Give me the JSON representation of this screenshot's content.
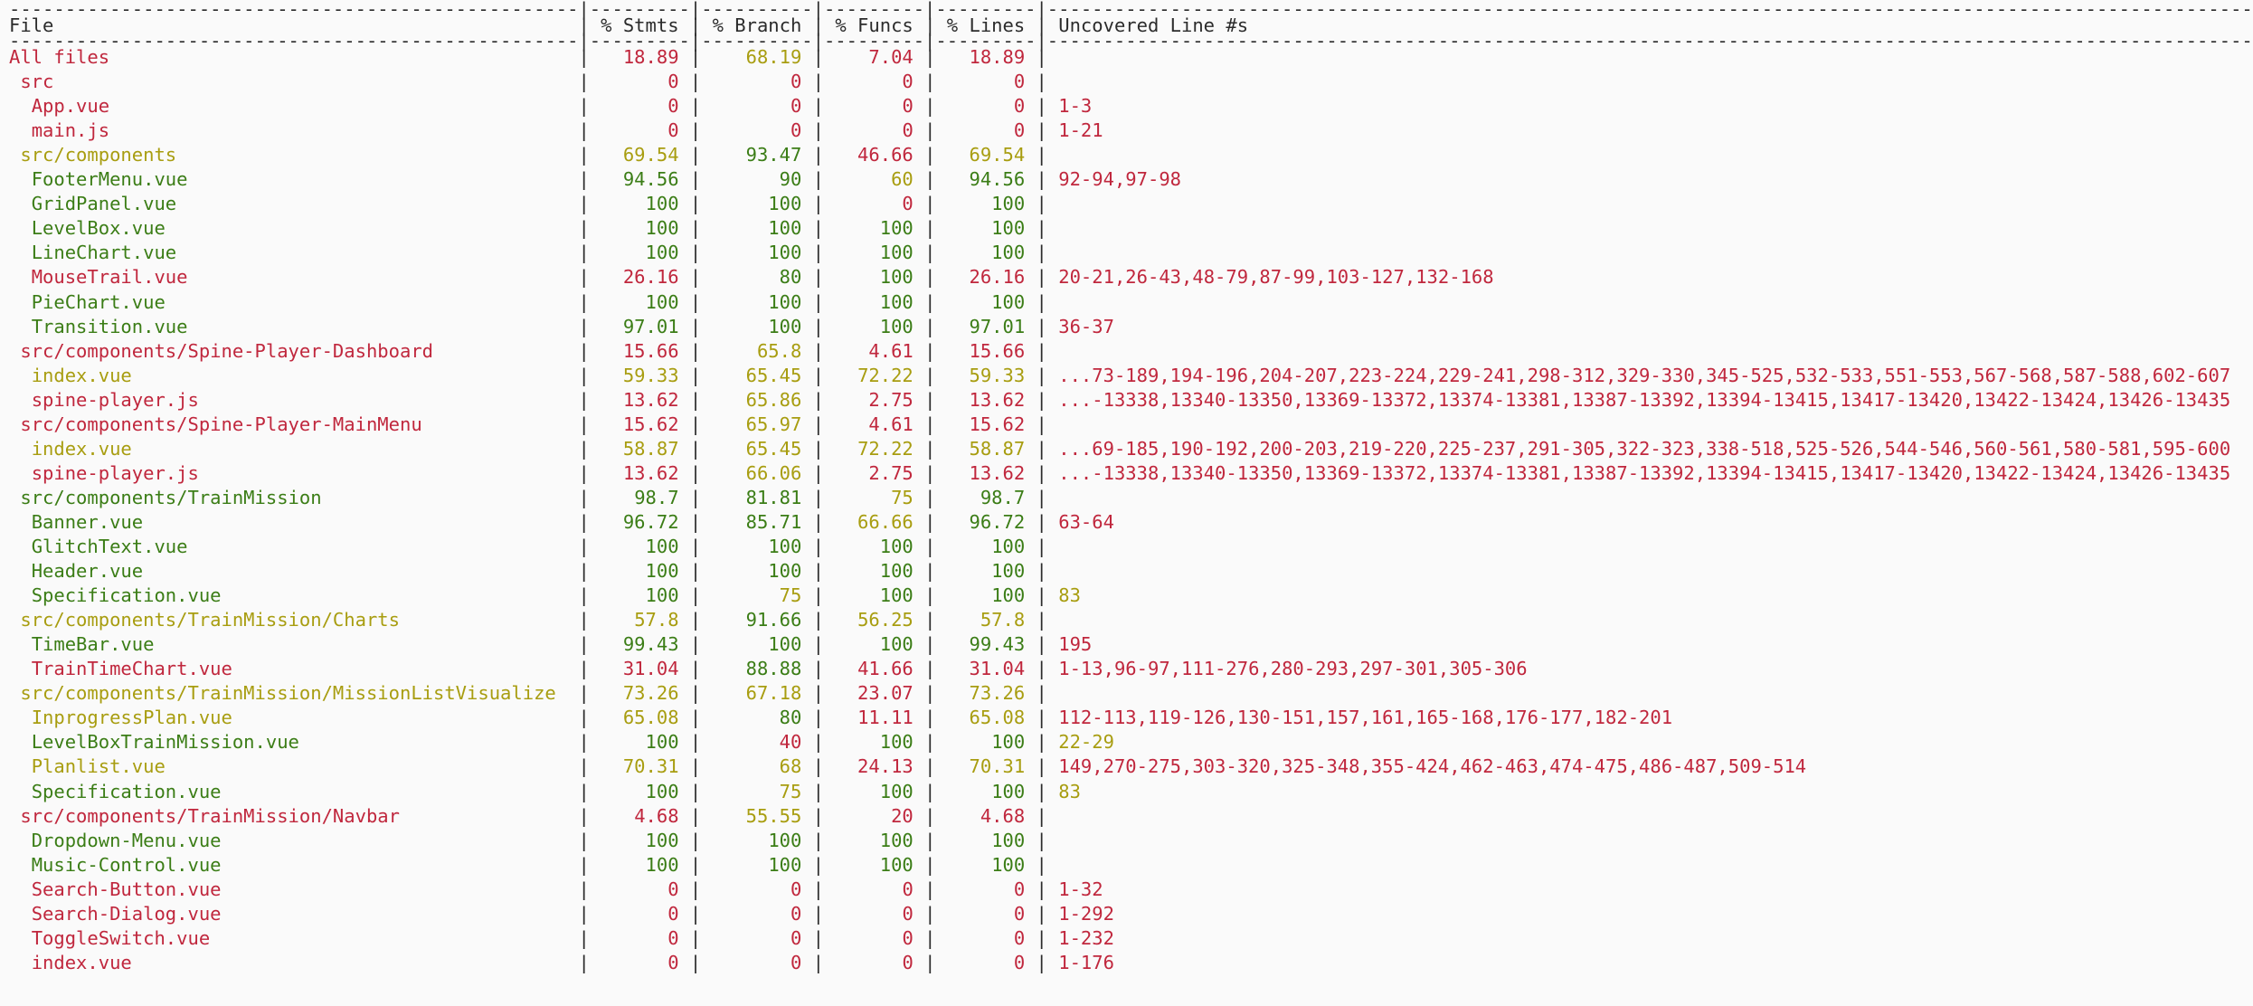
{
  "colors": {
    "background": "#fafafa",
    "text": "#2b2b2b",
    "low": "#c0273d",
    "medium": "#a89d10",
    "high": "#3b7d16"
  },
  "coverage_table": {
    "separator_chars": "-",
    "headers": [
      "File",
      "% Stmts",
      "% Branch",
      "% Funcs",
      "% Lines",
      "Uncovered Line #s"
    ],
    "rows": [
      {
        "file": "All files",
        "indent": 0,
        "file_status": "low",
        "stmts": "18.89",
        "stmts_status": "low",
        "branch": "68.19",
        "branch_status": "medium",
        "funcs": "7.04",
        "funcs_status": "low",
        "lines": "18.89",
        "lines_status": "low",
        "uncovered": "",
        "uncovered_status": "low"
      },
      {
        "file": "src",
        "indent": 1,
        "file_status": "low",
        "stmts": "0",
        "stmts_status": "low",
        "branch": "0",
        "branch_status": "low",
        "funcs": "0",
        "funcs_status": "low",
        "lines": "0",
        "lines_status": "low",
        "uncovered": "",
        "uncovered_status": "low"
      },
      {
        "file": "App.vue",
        "indent": 2,
        "file_status": "low",
        "stmts": "0",
        "stmts_status": "low",
        "branch": "0",
        "branch_status": "low",
        "funcs": "0",
        "funcs_status": "low",
        "lines": "0",
        "lines_status": "low",
        "uncovered": "1-3",
        "uncovered_status": "low"
      },
      {
        "file": "main.js",
        "indent": 2,
        "file_status": "low",
        "stmts": "0",
        "stmts_status": "low",
        "branch": "0",
        "branch_status": "low",
        "funcs": "0",
        "funcs_status": "low",
        "lines": "0",
        "lines_status": "low",
        "uncovered": "1-21",
        "uncovered_status": "low"
      },
      {
        "file": "src/components",
        "indent": 1,
        "file_status": "medium",
        "stmts": "69.54",
        "stmts_status": "medium",
        "branch": "93.47",
        "branch_status": "high",
        "funcs": "46.66",
        "funcs_status": "low",
        "lines": "69.54",
        "lines_status": "medium",
        "uncovered": "",
        "uncovered_status": "low"
      },
      {
        "file": "FooterMenu.vue",
        "indent": 2,
        "file_status": "high",
        "stmts": "94.56",
        "stmts_status": "high",
        "branch": "90",
        "branch_status": "high",
        "funcs": "60",
        "funcs_status": "medium",
        "lines": "94.56",
        "lines_status": "high",
        "uncovered": "92-94,97-98",
        "uncovered_status": "low"
      },
      {
        "file": "GridPanel.vue",
        "indent": 2,
        "file_status": "high",
        "stmts": "100",
        "stmts_status": "high",
        "branch": "100",
        "branch_status": "high",
        "funcs": "0",
        "funcs_status": "low",
        "lines": "100",
        "lines_status": "high",
        "uncovered": "",
        "uncovered_status": "low"
      },
      {
        "file": "LevelBox.vue",
        "indent": 2,
        "file_status": "high",
        "stmts": "100",
        "stmts_status": "high",
        "branch": "100",
        "branch_status": "high",
        "funcs": "100",
        "funcs_status": "high",
        "lines": "100",
        "lines_status": "high",
        "uncovered": "",
        "uncovered_status": "low"
      },
      {
        "file": "LineChart.vue",
        "indent": 2,
        "file_status": "high",
        "stmts": "100",
        "stmts_status": "high",
        "branch": "100",
        "branch_status": "high",
        "funcs": "100",
        "funcs_status": "high",
        "lines": "100",
        "lines_status": "high",
        "uncovered": "",
        "uncovered_status": "low"
      },
      {
        "file": "MouseTrail.vue",
        "indent": 2,
        "file_status": "low",
        "stmts": "26.16",
        "stmts_status": "low",
        "branch": "80",
        "branch_status": "high",
        "funcs": "100",
        "funcs_status": "high",
        "lines": "26.16",
        "lines_status": "low",
        "uncovered": "20-21,26-43,48-79,87-99,103-127,132-168",
        "uncovered_status": "low"
      },
      {
        "file": "PieChart.vue",
        "indent": 2,
        "file_status": "high",
        "stmts": "100",
        "stmts_status": "high",
        "branch": "100",
        "branch_status": "high",
        "funcs": "100",
        "funcs_status": "high",
        "lines": "100",
        "lines_status": "high",
        "uncovered": "",
        "uncovered_status": "low"
      },
      {
        "file": "Transition.vue",
        "indent": 2,
        "file_status": "high",
        "stmts": "97.01",
        "stmts_status": "high",
        "branch": "100",
        "branch_status": "high",
        "funcs": "100",
        "funcs_status": "high",
        "lines": "97.01",
        "lines_status": "high",
        "uncovered": "36-37",
        "uncovered_status": "low"
      },
      {
        "file": "src/components/Spine-Player-Dashboard",
        "indent": 1,
        "file_status": "low",
        "stmts": "15.66",
        "stmts_status": "low",
        "branch": "65.8",
        "branch_status": "medium",
        "funcs": "4.61",
        "funcs_status": "low",
        "lines": "15.66",
        "lines_status": "low",
        "uncovered": "",
        "uncovered_status": "low"
      },
      {
        "file": "index.vue",
        "indent": 2,
        "file_status": "medium",
        "stmts": "59.33",
        "stmts_status": "medium",
        "branch": "65.45",
        "branch_status": "medium",
        "funcs": "72.22",
        "funcs_status": "medium",
        "lines": "59.33",
        "lines_status": "medium",
        "uncovered": "...73-189,194-196,204-207,223-224,229-241,298-312,329-330,345-525,532-533,551-553,567-568,587-588,602-607",
        "uncovered_status": "low"
      },
      {
        "file": "spine-player.js",
        "indent": 2,
        "file_status": "low",
        "stmts": "13.62",
        "stmts_status": "low",
        "branch": "65.86",
        "branch_status": "medium",
        "funcs": "2.75",
        "funcs_status": "low",
        "lines": "13.62",
        "lines_status": "low",
        "uncovered": "...-13338,13340-13350,13369-13372,13374-13381,13387-13392,13394-13415,13417-13420,13422-13424,13426-13435",
        "uncovered_status": "low"
      },
      {
        "file": "src/components/Spine-Player-MainMenu",
        "indent": 1,
        "file_status": "low",
        "stmts": "15.62",
        "stmts_status": "low",
        "branch": "65.97",
        "branch_status": "medium",
        "funcs": "4.61",
        "funcs_status": "low",
        "lines": "15.62",
        "lines_status": "low",
        "uncovered": "",
        "uncovered_status": "low"
      },
      {
        "file": "index.vue",
        "indent": 2,
        "file_status": "medium",
        "stmts": "58.87",
        "stmts_status": "medium",
        "branch": "65.45",
        "branch_status": "medium",
        "funcs": "72.22",
        "funcs_status": "medium",
        "lines": "58.87",
        "lines_status": "medium",
        "uncovered": "...69-185,190-192,200-203,219-220,225-237,291-305,322-323,338-518,525-526,544-546,560-561,580-581,595-600",
        "uncovered_status": "low"
      },
      {
        "file": "spine-player.js",
        "indent": 2,
        "file_status": "low",
        "stmts": "13.62",
        "stmts_status": "low",
        "branch": "66.06",
        "branch_status": "medium",
        "funcs": "2.75",
        "funcs_status": "low",
        "lines": "13.62",
        "lines_status": "low",
        "uncovered": "...-13338,13340-13350,13369-13372,13374-13381,13387-13392,13394-13415,13417-13420,13422-13424,13426-13435",
        "uncovered_status": "low"
      },
      {
        "file": "src/components/TrainMission",
        "indent": 1,
        "file_status": "high",
        "stmts": "98.7",
        "stmts_status": "high",
        "branch": "81.81",
        "branch_status": "high",
        "funcs": "75",
        "funcs_status": "medium",
        "lines": "98.7",
        "lines_status": "high",
        "uncovered": "",
        "uncovered_status": "low"
      },
      {
        "file": "Banner.vue",
        "indent": 2,
        "file_status": "high",
        "stmts": "96.72",
        "stmts_status": "high",
        "branch": "85.71",
        "branch_status": "high",
        "funcs": "66.66",
        "funcs_status": "medium",
        "lines": "96.72",
        "lines_status": "high",
        "uncovered": "63-64",
        "uncovered_status": "low"
      },
      {
        "file": "GlitchText.vue",
        "indent": 2,
        "file_status": "high",
        "stmts": "100",
        "stmts_status": "high",
        "branch": "100",
        "branch_status": "high",
        "funcs": "100",
        "funcs_status": "high",
        "lines": "100",
        "lines_status": "high",
        "uncovered": "",
        "uncovered_status": "low"
      },
      {
        "file": "Header.vue",
        "indent": 2,
        "file_status": "high",
        "stmts": "100",
        "stmts_status": "high",
        "branch": "100",
        "branch_status": "high",
        "funcs": "100",
        "funcs_status": "high",
        "lines": "100",
        "lines_status": "high",
        "uncovered": "",
        "uncovered_status": "low"
      },
      {
        "file": "Specification.vue",
        "indent": 2,
        "file_status": "high",
        "stmts": "100",
        "stmts_status": "high",
        "branch": "75",
        "branch_status": "medium",
        "funcs": "100",
        "funcs_status": "high",
        "lines": "100",
        "lines_status": "high",
        "uncovered": "83",
        "uncovered_status": "medium"
      },
      {
        "file": "src/components/TrainMission/Charts",
        "indent": 1,
        "file_status": "medium",
        "stmts": "57.8",
        "stmts_status": "medium",
        "branch": "91.66",
        "branch_status": "high",
        "funcs": "56.25",
        "funcs_status": "medium",
        "lines": "57.8",
        "lines_status": "medium",
        "uncovered": "",
        "uncovered_status": "low"
      },
      {
        "file": "TimeBar.vue",
        "indent": 2,
        "file_status": "high",
        "stmts": "99.43",
        "stmts_status": "high",
        "branch": "100",
        "branch_status": "high",
        "funcs": "100",
        "funcs_status": "high",
        "lines": "99.43",
        "lines_status": "high",
        "uncovered": "195",
        "uncovered_status": "low"
      },
      {
        "file": "TrainTimeChart.vue",
        "indent": 2,
        "file_status": "low",
        "stmts": "31.04",
        "stmts_status": "low",
        "branch": "88.88",
        "branch_status": "high",
        "funcs": "41.66",
        "funcs_status": "low",
        "lines": "31.04",
        "lines_status": "low",
        "uncovered": "1-13,96-97,111-276,280-293,297-301,305-306",
        "uncovered_status": "low"
      },
      {
        "file": "src/components/TrainMission/MissionListVisualize",
        "indent": 1,
        "file_status": "medium",
        "stmts": "73.26",
        "stmts_status": "medium",
        "branch": "67.18",
        "branch_status": "medium",
        "funcs": "23.07",
        "funcs_status": "low",
        "lines": "73.26",
        "lines_status": "medium",
        "uncovered": "",
        "uncovered_status": "low"
      },
      {
        "file": "InprogressPlan.vue",
        "indent": 2,
        "file_status": "medium",
        "stmts": "65.08",
        "stmts_status": "medium",
        "branch": "80",
        "branch_status": "high",
        "funcs": "11.11",
        "funcs_status": "low",
        "lines": "65.08",
        "lines_status": "medium",
        "uncovered": "112-113,119-126,130-151,157,161,165-168,176-177,182-201",
        "uncovered_status": "low"
      },
      {
        "file": "LevelBoxTrainMission.vue",
        "indent": 2,
        "file_status": "high",
        "stmts": "100",
        "stmts_status": "high",
        "branch": "40",
        "branch_status": "low",
        "funcs": "100",
        "funcs_status": "high",
        "lines": "100",
        "lines_status": "high",
        "uncovered": "22-29",
        "uncovered_status": "medium"
      },
      {
        "file": "Planlist.vue",
        "indent": 2,
        "file_status": "medium",
        "stmts": "70.31",
        "stmts_status": "medium",
        "branch": "68",
        "branch_status": "medium",
        "funcs": "24.13",
        "funcs_status": "low",
        "lines": "70.31",
        "lines_status": "medium",
        "uncovered": "149,270-275,303-320,325-348,355-424,462-463,474-475,486-487,509-514",
        "uncovered_status": "low"
      },
      {
        "file": "Specification.vue",
        "indent": 2,
        "file_status": "high",
        "stmts": "100",
        "stmts_status": "high",
        "branch": "75",
        "branch_status": "medium",
        "funcs": "100",
        "funcs_status": "high",
        "lines": "100",
        "lines_status": "high",
        "uncovered": "83",
        "uncovered_status": "medium"
      },
      {
        "file": "src/components/TrainMission/Navbar",
        "indent": 1,
        "file_status": "low",
        "stmts": "4.68",
        "stmts_status": "low",
        "branch": "55.55",
        "branch_status": "medium",
        "funcs": "20",
        "funcs_status": "low",
        "lines": "4.68",
        "lines_status": "low",
        "uncovered": "",
        "uncovered_status": "low"
      },
      {
        "file": "Dropdown-Menu.vue",
        "indent": 2,
        "file_status": "high",
        "stmts": "100",
        "stmts_status": "high",
        "branch": "100",
        "branch_status": "high",
        "funcs": "100",
        "funcs_status": "high",
        "lines": "100",
        "lines_status": "high",
        "uncovered": "",
        "uncovered_status": "low"
      },
      {
        "file": "Music-Control.vue",
        "indent": 2,
        "file_status": "high",
        "stmts": "100",
        "stmts_status": "high",
        "branch": "100",
        "branch_status": "high",
        "funcs": "100",
        "funcs_status": "high",
        "lines": "100",
        "lines_status": "high",
        "uncovered": "",
        "uncovered_status": "low"
      },
      {
        "file": "Search-Button.vue",
        "indent": 2,
        "file_status": "low",
        "stmts": "0",
        "stmts_status": "low",
        "branch": "0",
        "branch_status": "low",
        "funcs": "0",
        "funcs_status": "low",
        "lines": "0",
        "lines_status": "low",
        "uncovered": "1-32",
        "uncovered_status": "low"
      },
      {
        "file": "Search-Dialog.vue",
        "indent": 2,
        "file_status": "low",
        "stmts": "0",
        "stmts_status": "low",
        "branch": "0",
        "branch_status": "low",
        "funcs": "0",
        "funcs_status": "low",
        "lines": "0",
        "lines_status": "low",
        "uncovered": "1-292",
        "uncovered_status": "low"
      },
      {
        "file": "ToggleSwitch.vue",
        "indent": 2,
        "file_status": "low",
        "stmts": "0",
        "stmts_status": "low",
        "branch": "0",
        "branch_status": "low",
        "funcs": "0",
        "funcs_status": "low",
        "lines": "0",
        "lines_status": "low",
        "uncovered": "1-232",
        "uncovered_status": "low"
      },
      {
        "file": "index.vue",
        "indent": 2,
        "file_status": "low",
        "stmts": "0",
        "stmts_status": "low",
        "branch": "0",
        "branch_status": "low",
        "funcs": "0",
        "funcs_status": "low",
        "lines": "0",
        "lines_status": "low",
        "uncovered": "1-176",
        "uncovered_status": "low"
      }
    ]
  }
}
